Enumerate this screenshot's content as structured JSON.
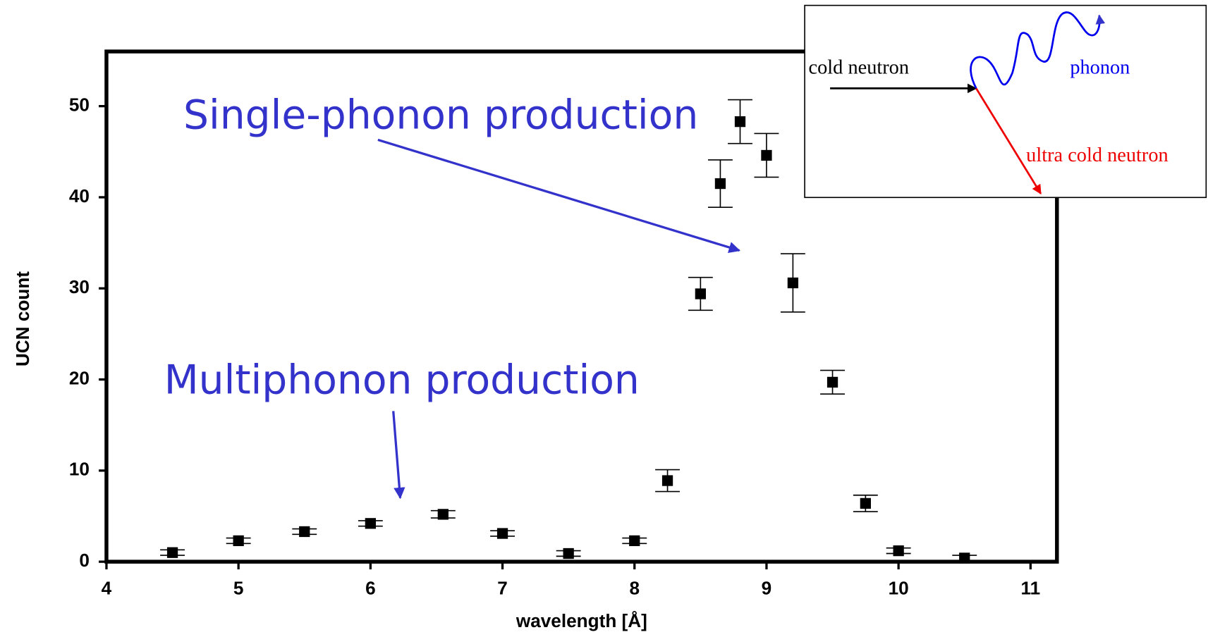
{
  "chart_data": {
    "type": "scatter",
    "xlabel": "wavelength [Å]",
    "ylabel": "UCN count",
    "x": [
      4.5,
      5.0,
      5.5,
      6.0,
      6.55,
      7.0,
      7.5,
      8.0,
      8.25,
      8.5,
      8.65,
      8.8,
      9.0,
      9.2,
      9.5,
      9.75,
      10.0,
      10.5
    ],
    "series": [
      {
        "color": "#000000",
        "values": [
          1.0,
          2.3,
          3.3,
          4.2,
          5.2,
          3.1,
          0.9,
          2.3,
          8.9,
          29.4,
          41.5,
          48.3,
          44.6,
          30.6,
          19.7,
          6.4,
          1.2,
          0.4
        ],
        "errors": [
          0.3,
          0.3,
          0.3,
          0.3,
          0.4,
          0.3,
          0.3,
          0.3,
          1.2,
          1.8,
          2.6,
          2.4,
          2.4,
          3.2,
          1.3,
          0.9,
          0.3,
          0.3
        ]
      }
    ],
    "xlim": [
      4,
      11.2
    ],
    "ylim": [
      0,
      56
    ],
    "xticks": [
      4,
      5,
      6,
      7,
      8,
      9,
      10,
      11
    ],
    "yticks": [
      0,
      10,
      20,
      30,
      40,
      50
    ],
    "annotations": [
      "Single-phonon production",
      "Multiphonon production"
    ],
    "inset": {
      "incoming": "cold neutron",
      "phonon": "phonon",
      "outgoing": "ultra cold neutron"
    }
  }
}
